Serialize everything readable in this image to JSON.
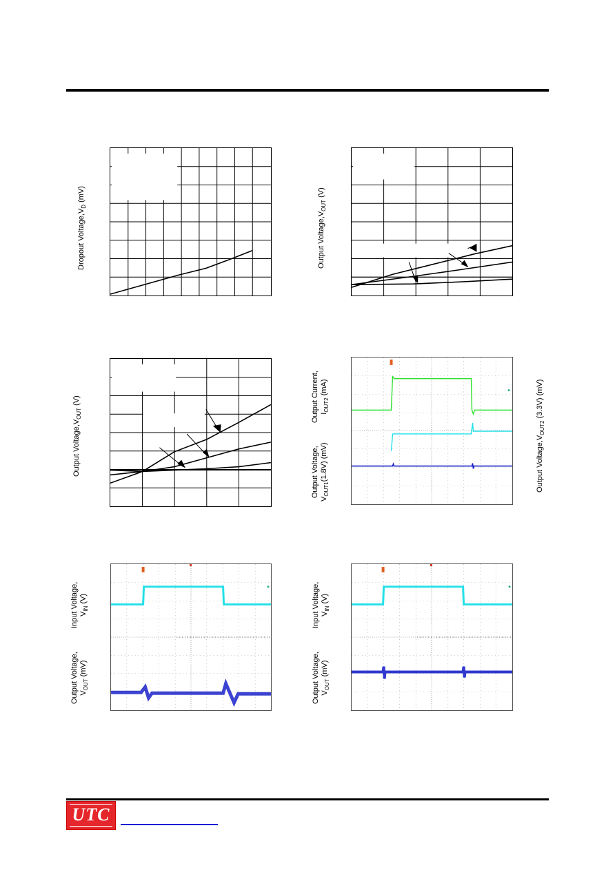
{
  "labels": {
    "g1_y": "Dropout Voltage,V",
    "g1_y_sub": "D",
    "g1_y_unit": " (mV)",
    "g2_y": "Output Voltage,V",
    "g2_y_sub": "OUT",
    "g2_y_unit": " (V)",
    "g3_y": "Output Voltage,V",
    "g3_y_sub": "OUT",
    "g3_y_unit": " (V)",
    "g4_y_top_1": "Output Current,",
    "g4_y_top_2": "I",
    "g4_y_top_2_sub": "OUT2",
    "g4_y_top_2_unit": " (mA)",
    "g4_y_bot_1": "Output Voltage,",
    "g4_y_bot_2": "V",
    "g4_y_bot_2_sub": "OUT1",
    "g4_y_bot_2_unit": "(1.8V) (mV)",
    "g4_y_right": "Output Voltage,V",
    "g4_y_right_sub": "OUT2",
    "g4_y_right_unit": " (3.3V) (mV)",
    "g5_y_top_1": "Input Voltage,",
    "g5_y_top_2": "V",
    "g5_y_top_2_sub": "IN",
    "g5_y_top_2_unit": " (V)",
    "g5_y_bot_1": "Output Voltage,",
    "g5_y_bot_2": "V",
    "g5_y_bot_2_sub": "OUT",
    "g5_y_bot_2_unit": " (mV)",
    "g6_y_top_1": "Input Voltage,",
    "g6_y_top_2": "V",
    "g6_y_top_2_sub": "IN",
    "g6_y_top_2_unit": " (V)",
    "g6_y_bot_1": "Output Voltage,",
    "g6_y_bot_2": "V",
    "g6_y_bot_2_sub": "OUT",
    "g6_y_bot_2_unit": " (mV)"
  },
  "footer": {
    "logo_text": "UTC"
  },
  "colors": {
    "trace_green": "#2ee02e",
    "trace_cyan": "#22e0e8",
    "trace_blue": "#1a22c8",
    "logo_red": "#e5262b",
    "link_blue": "#1a1ad6"
  }
}
